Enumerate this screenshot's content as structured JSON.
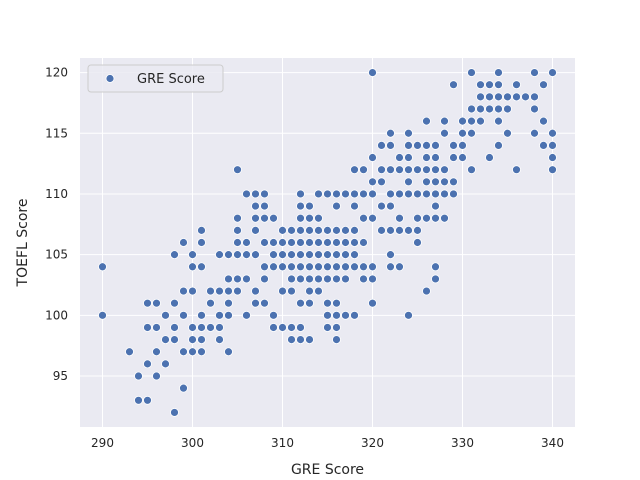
{
  "chart_data": {
    "type": "scatter",
    "title": "",
    "xlabel": "GRE Score",
    "ylabel": "TOEFL Score",
    "xlim": [
      287.5,
      342.5
    ],
    "ylim": [
      90.8,
      121.2
    ],
    "xticks": [
      290,
      300,
      310,
      320,
      330,
      340
    ],
    "yticks": [
      95,
      100,
      105,
      110,
      115,
      120
    ],
    "grid": true,
    "legend": {
      "location": "upper-left",
      "entries": [
        "GRE Score"
      ]
    },
    "colors": {
      "background": "#eaeaf2",
      "grid": "#ffffff",
      "marker": "#4c72b0",
      "marker_edge": "#ffffff"
    },
    "series": [
      {
        "name": "GRE Score",
        "points": [
          [
            290,
            104
          ],
          [
            290,
            100
          ],
          [
            293,
            97
          ],
          [
            294,
            95
          ],
          [
            294,
            93
          ],
          [
            295,
            101
          ],
          [
            295,
            99
          ],
          [
            295,
            96
          ],
          [
            295,
            93
          ],
          [
            296,
            101
          ],
          [
            296,
            99
          ],
          [
            296,
            97
          ],
          [
            296,
            95
          ],
          [
            297,
            100
          ],
          [
            297,
            98
          ],
          [
            297,
            96
          ],
          [
            298,
            105
          ],
          [
            298,
            101
          ],
          [
            298,
            99
          ],
          [
            298,
            98
          ],
          [
            298,
            92
          ],
          [
            299,
            106
          ],
          [
            299,
            102
          ],
          [
            299,
            100
          ],
          [
            299,
            97
          ],
          [
            299,
            94
          ],
          [
            300,
            105
          ],
          [
            300,
            104
          ],
          [
            300,
            102
          ],
          [
            300,
            99
          ],
          [
            300,
            98
          ],
          [
            300,
            97
          ],
          [
            301,
            107
          ],
          [
            301,
            106
          ],
          [
            301,
            104
          ],
          [
            301,
            100
          ],
          [
            301,
            99
          ],
          [
            301,
            98
          ],
          [
            301,
            97
          ],
          [
            302,
            102
          ],
          [
            302,
            101
          ],
          [
            302,
            99
          ],
          [
            303,
            105
          ],
          [
            303,
            102
          ],
          [
            303,
            100
          ],
          [
            303,
            99
          ],
          [
            303,
            98
          ],
          [
            304,
            105
          ],
          [
            304,
            103
          ],
          [
            304,
            102
          ],
          [
            304,
            101
          ],
          [
            304,
            100
          ],
          [
            304,
            97
          ],
          [
            305,
            112
          ],
          [
            305,
            108
          ],
          [
            305,
            107
          ],
          [
            305,
            106
          ],
          [
            305,
            105
          ],
          [
            305,
            103
          ],
          [
            305,
            102
          ],
          [
            306,
            110
          ],
          [
            306,
            106
          ],
          [
            306,
            105
          ],
          [
            306,
            103
          ],
          [
            306,
            100
          ],
          [
            307,
            110
          ],
          [
            307,
            109
          ],
          [
            307,
            108
          ],
          [
            307,
            107
          ],
          [
            307,
            105
          ],
          [
            307,
            102
          ],
          [
            307,
            101
          ],
          [
            308,
            110
          ],
          [
            308,
            109
          ],
          [
            308,
            108
          ],
          [
            308,
            106
          ],
          [
            308,
            104
          ],
          [
            308,
            103
          ],
          [
            308,
            101
          ],
          [
            309,
            108
          ],
          [
            309,
            106
          ],
          [
            309,
            105
          ],
          [
            309,
            104
          ],
          [
            309,
            100
          ],
          [
            309,
            99
          ],
          [
            310,
            107
          ],
          [
            310,
            106
          ],
          [
            310,
            105
          ],
          [
            310,
            104
          ],
          [
            310,
            102
          ],
          [
            310,
            99
          ],
          [
            311,
            107
          ],
          [
            311,
            106
          ],
          [
            311,
            105
          ],
          [
            311,
            104
          ],
          [
            311,
            103
          ],
          [
            311,
            102
          ],
          [
            311,
            99
          ],
          [
            311,
            98
          ],
          [
            312,
            110
          ],
          [
            312,
            109
          ],
          [
            312,
            108
          ],
          [
            312,
            107
          ],
          [
            312,
            106
          ],
          [
            312,
            105
          ],
          [
            312,
            104
          ],
          [
            312,
            103
          ],
          [
            312,
            101
          ],
          [
            312,
            99
          ],
          [
            312,
            98
          ],
          [
            313,
            109
          ],
          [
            313,
            108
          ],
          [
            313,
            107
          ],
          [
            313,
            106
          ],
          [
            313,
            105
          ],
          [
            313,
            104
          ],
          [
            313,
            103
          ],
          [
            313,
            102
          ],
          [
            313,
            101
          ],
          [
            313,
            98
          ],
          [
            314,
            110
          ],
          [
            314,
            108
          ],
          [
            314,
            107
          ],
          [
            314,
            106
          ],
          [
            314,
            105
          ],
          [
            314,
            104
          ],
          [
            314,
            103
          ],
          [
            314,
            102
          ],
          [
            315,
            110
          ],
          [
            315,
            107
          ],
          [
            315,
            106
          ],
          [
            315,
            105
          ],
          [
            315,
            104
          ],
          [
            315,
            103
          ],
          [
            315,
            101
          ],
          [
            315,
            100
          ],
          [
            315,
            99
          ],
          [
            316,
            110
          ],
          [
            316,
            109
          ],
          [
            316,
            107
          ],
          [
            316,
            106
          ],
          [
            316,
            105
          ],
          [
            316,
            104
          ],
          [
            316,
            103
          ],
          [
            316,
            101
          ],
          [
            316,
            100
          ],
          [
            316,
            99
          ],
          [
            316,
            98
          ],
          [
            317,
            110
          ],
          [
            317,
            107
          ],
          [
            317,
            106
          ],
          [
            317,
            105
          ],
          [
            317,
            104
          ],
          [
            317,
            103
          ],
          [
            317,
            100
          ],
          [
            318,
            112
          ],
          [
            318,
            110
          ],
          [
            318,
            109
          ],
          [
            318,
            107
          ],
          [
            318,
            106
          ],
          [
            318,
            105
          ],
          [
            318,
            104
          ],
          [
            318,
            100
          ],
          [
            319,
            112
          ],
          [
            319,
            110
          ],
          [
            319,
            108
          ],
          [
            319,
            106
          ],
          [
            319,
            104
          ],
          [
            319,
            103
          ],
          [
            320,
            120
          ],
          [
            320,
            113
          ],
          [
            320,
            111
          ],
          [
            320,
            110
          ],
          [
            320,
            108
          ],
          [
            320,
            104
          ],
          [
            320,
            103
          ],
          [
            320,
            101
          ],
          [
            321,
            114
          ],
          [
            321,
            112
          ],
          [
            321,
            111
          ],
          [
            321,
            109
          ],
          [
            321,
            107
          ],
          [
            322,
            115
          ],
          [
            322,
            114
          ],
          [
            322,
            112
          ],
          [
            322,
            110
          ],
          [
            322,
            109
          ],
          [
            322,
            107
          ],
          [
            322,
            105
          ],
          [
            322,
            104
          ],
          [
            323,
            113
          ],
          [
            323,
            112
          ],
          [
            323,
            110
          ],
          [
            323,
            108
          ],
          [
            323,
            107
          ],
          [
            323,
            104
          ],
          [
            324,
            115
          ],
          [
            324,
            114
          ],
          [
            324,
            113
          ],
          [
            324,
            112
          ],
          [
            324,
            111
          ],
          [
            324,
            110
          ],
          [
            324,
            107
          ],
          [
            324,
            100
          ],
          [
            325,
            114
          ],
          [
            325,
            112
          ],
          [
            325,
            110
          ],
          [
            325,
            108
          ],
          [
            325,
            107
          ],
          [
            325,
            106
          ],
          [
            326,
            116
          ],
          [
            326,
            114
          ],
          [
            326,
            113
          ],
          [
            326,
            112
          ],
          [
            326,
            111
          ],
          [
            326,
            110
          ],
          [
            326,
            108
          ],
          [
            326,
            102
          ],
          [
            327,
            114
          ],
          [
            327,
            113
          ],
          [
            327,
            112
          ],
          [
            327,
            111
          ],
          [
            327,
            110
          ],
          [
            327,
            109
          ],
          [
            327,
            108
          ],
          [
            327,
            104
          ],
          [
            327,
            103
          ],
          [
            328,
            116
          ],
          [
            328,
            115
          ],
          [
            328,
            112
          ],
          [
            328,
            111
          ],
          [
            328,
            110
          ],
          [
            328,
            108
          ],
          [
            329,
            119
          ],
          [
            329,
            114
          ],
          [
            329,
            113
          ],
          [
            329,
            111
          ],
          [
            329,
            110
          ],
          [
            330,
            116
          ],
          [
            330,
            115
          ],
          [
            330,
            114
          ],
          [
            330,
            113
          ],
          [
            331,
            120
          ],
          [
            331,
            117
          ],
          [
            331,
            116
          ],
          [
            331,
            115
          ],
          [
            331,
            112
          ],
          [
            332,
            119
          ],
          [
            332,
            118
          ],
          [
            332,
            117
          ],
          [
            332,
            116
          ],
          [
            333,
            119
          ],
          [
            333,
            118
          ],
          [
            333,
            117
          ],
          [
            333,
            113
          ],
          [
            334,
            120
          ],
          [
            334,
            119
          ],
          [
            334,
            118
          ],
          [
            334,
            117
          ],
          [
            334,
            116
          ],
          [
            334,
            114
          ],
          [
            335,
            118
          ],
          [
            335,
            117
          ],
          [
            335,
            115
          ],
          [
            336,
            119
          ],
          [
            336,
            118
          ],
          [
            336,
            112
          ],
          [
            337,
            118
          ],
          [
            338,
            120
          ],
          [
            338,
            118
          ],
          [
            338,
            117
          ],
          [
            338,
            115
          ],
          [
            339,
            119
          ],
          [
            339,
            116
          ],
          [
            339,
            114
          ],
          [
            340,
            120
          ],
          [
            340,
            115
          ],
          [
            340,
            114
          ],
          [
            340,
            113
          ],
          [
            340,
            112
          ]
        ]
      }
    ]
  }
}
